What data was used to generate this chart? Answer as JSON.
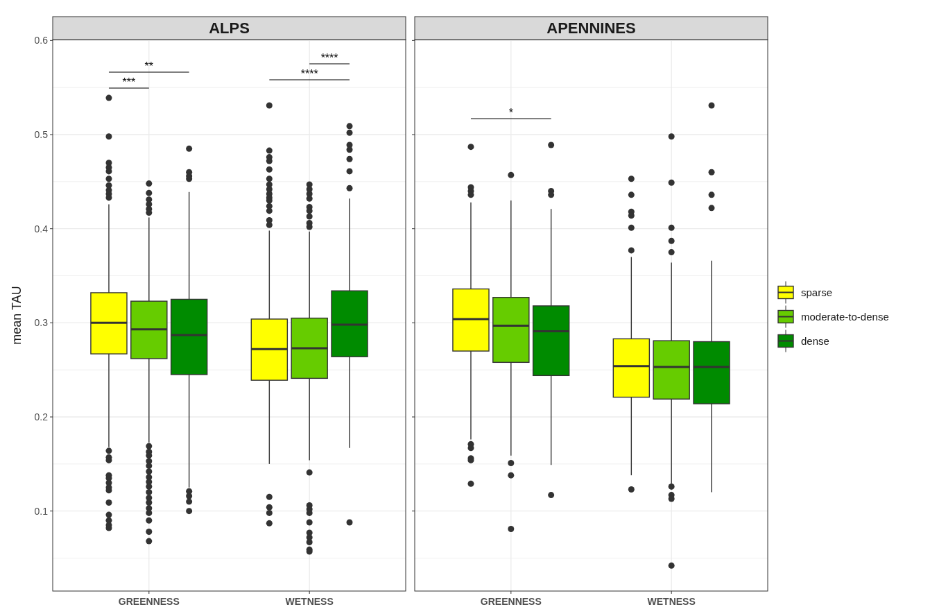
{
  "chart_data": [
    {
      "type": "box",
      "title": "ALPS",
      "ylabel": "mean TAU",
      "categories": [
        "GREENNESS",
        "WETNESS"
      ],
      "ylim": [
        0.015,
        0.601
      ],
      "yticks": [
        {
          "value": 0.05,
          "label": null
        },
        0.1,
        {
          "value": 0.15,
          "label": null
        },
        0.2,
        {
          "value": 0.25,
          "label": null
        },
        0.3,
        {
          "value": 0.35,
          "label": null
        },
        0.4,
        {
          "value": 0.45,
          "label": null
        },
        0.5,
        {
          "value": 0.55,
          "label": null
        },
        0.6
      ],
      "grid": true,
      "legend": false,
      "annotations": [
        "***",
        "**",
        "****",
        "****"
      ],
      "series": [
        {
          "color": "#ffff00",
          "boxes": [
            {
              "low": 0.168,
              "q1": 0.267,
              "median": 0.3,
              "q3": 0.332,
              "high": 0.426,
              "outliers": [
                0.539,
                0.498,
                0.47,
                0.465,
                0.461,
                0.453,
                0.446,
                0.441,
                0.437,
                0.433,
                0.164,
                0.157,
                0.154,
                0.138,
                0.135,
                0.13,
                0.125,
                0.122,
                0.109,
                0.096,
                0.09,
                0.085,
                0.082
              ]
            },
            {
              "low": 0.15,
              "q1": 0.239,
              "median": 0.272,
              "q3": 0.304,
              "high": 0.398,
              "outliers": [
                0.531,
                0.483,
                0.476,
                0.472,
                0.463,
                0.453,
                0.447,
                0.442,
                0.437,
                0.433,
                0.43,
                0.424,
                0.419,
                0.409,
                0.404,
                0.115,
                0.104,
                0.098,
                0.087
              ]
            }
          ]
        },
        {
          "color": "#66cc00",
          "boxes": [
            {
              "low": 0.173,
              "q1": 0.262,
              "median": 0.293,
              "q3": 0.323,
              "high": 0.412,
              "outliers": [
                0.448,
                0.438,
                0.431,
                0.426,
                0.421,
                0.417,
                0.169,
                0.163,
                0.159,
                0.153,
                0.148,
                0.142,
                0.136,
                0.131,
                0.126,
                0.12,
                0.114,
                0.109,
                0.103,
                0.098,
                0.09,
                0.078,
                0.068
              ]
            },
            {
              "low": 0.154,
              "q1": 0.241,
              "median": 0.273,
              "q3": 0.305,
              "high": 0.397,
              "outliers": [
                0.447,
                0.442,
                0.437,
                0.432,
                0.423,
                0.419,
                0.413,
                0.406,
                0.402,
                0.141,
                0.106,
                0.102,
                0.098,
                0.088,
                0.077,
                0.072,
                0.067,
                0.059,
                0.057
              ]
            }
          ]
        },
        {
          "color": "#008b00",
          "boxes": [
            {
              "low": 0.125,
              "q1": 0.245,
              "median": 0.287,
              "q3": 0.325,
              "high": 0.439,
              "outliers": [
                0.485,
                0.46,
                0.456,
                0.453,
                0.121,
                0.116,
                0.11,
                0.1
              ]
            },
            {
              "low": 0.167,
              "q1": 0.264,
              "median": 0.298,
              "q3": 0.334,
              "high": 0.432,
              "outliers": [
                0.509,
                0.502,
                0.489,
                0.484,
                0.474,
                0.461,
                0.443,
                0.088
              ]
            }
          ]
        }
      ]
    },
    {
      "type": "box",
      "title": "APENNINES",
      "categories": [
        "GREENNESS",
        "WETNESS"
      ],
      "ylim": [
        0.015,
        0.601
      ],
      "yticks": [
        {
          "value": 0.05,
          "label": null
        },
        0.1,
        {
          "value": 0.15,
          "label": null
        },
        0.2,
        {
          "value": 0.25,
          "label": null
        },
        0.3,
        {
          "value": 0.35,
          "label": null
        },
        0.4,
        {
          "value": 0.45,
          "label": null
        },
        0.5,
        {
          "value": 0.55,
          "label": null
        },
        0.6
      ],
      "grid": true,
      "tick_labels": "x",
      "legend": "right",
      "annotations": [
        "*"
      ],
      "series": [
        {
          "name": "sparse",
          "color": "#ffff00",
          "boxes": [
            {
              "low": 0.176,
              "q1": 0.27,
              "median": 0.304,
              "q3": 0.336,
              "high": 0.428,
              "outliers": [
                0.487,
                0.444,
                0.44,
                0.436,
                0.171,
                0.167,
                0.156,
                0.154,
                0.129
              ]
            },
            {
              "low": 0.138,
              "q1": 0.221,
              "median": 0.254,
              "q3": 0.283,
              "high": 0.37,
              "outliers": [
                0.453,
                0.436,
                0.418,
                0.414,
                0.401,
                0.377,
                0.123
              ]
            }
          ]
        },
        {
          "name": "moderate-to-dense",
          "color": "#66cc00",
          "boxes": [
            {
              "low": 0.159,
              "q1": 0.258,
              "median": 0.297,
              "q3": 0.327,
              "high": 0.43,
              "outliers": [
                0.457,
                0.151,
                0.138,
                0.081
              ]
            },
            {
              "low": 0.129,
              "q1": 0.219,
              "median": 0.253,
              "q3": 0.281,
              "high": 0.364,
              "outliers": [
                0.498,
                0.449,
                0.401,
                0.387,
                0.375,
                0.126,
                0.117,
                0.113,
                0.042
              ]
            }
          ]
        },
        {
          "name": "dense",
          "color": "#008b00",
          "boxes": [
            {
              "low": 0.149,
              "q1": 0.244,
              "median": 0.291,
              "q3": 0.318,
              "high": 0.421,
              "outliers": [
                0.489,
                0.44,
                0.436,
                0.117
              ]
            },
            {
              "low": 0.12,
              "q1": 0.214,
              "median": 0.253,
              "q3": 0.28,
              "high": 0.366,
              "outliers": [
                0.531,
                0.46,
                0.436,
                0.422
              ]
            }
          ]
        }
      ]
    }
  ]
}
